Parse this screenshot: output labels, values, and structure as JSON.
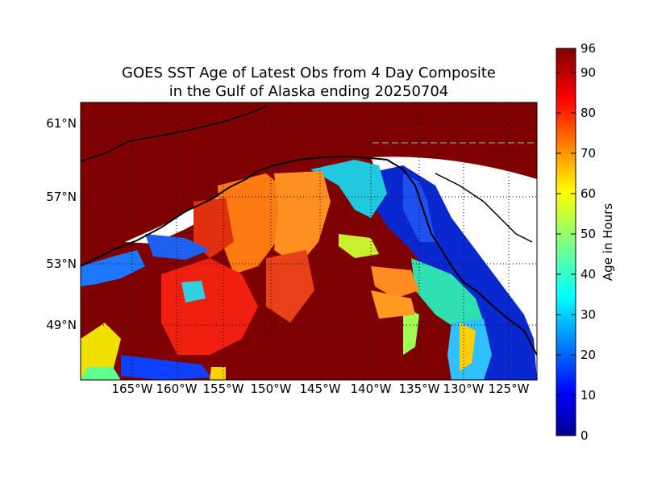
{
  "title_line1": "GOES SST Age of Latest Obs from 4 Day Composite",
  "title_line2": "in the Gulf of Alaska ending 20250704",
  "lat_labels": [
    "61°N",
    "57°N",
    "53°N",
    "49°N"
  ],
  "lon_labels": [
    "165°W",
    "160°W",
    "155°W",
    "150°W",
    "145°W",
    "140°W",
    "135°W",
    "130°W",
    "125°W"
  ],
  "colorbar": {
    "label": "Age in Hours",
    "ticks": [
      "96",
      "90",
      "80",
      "70",
      "60",
      "50",
      "40",
      "30",
      "20",
      "10",
      "0"
    ],
    "range": [
      0,
      96
    ],
    "colormap": "jet"
  },
  "colors": {
    "no_data_land": "#ffffff",
    "oldest": "#7f0000",
    "grid": "#000000",
    "border": "#888888"
  }
}
